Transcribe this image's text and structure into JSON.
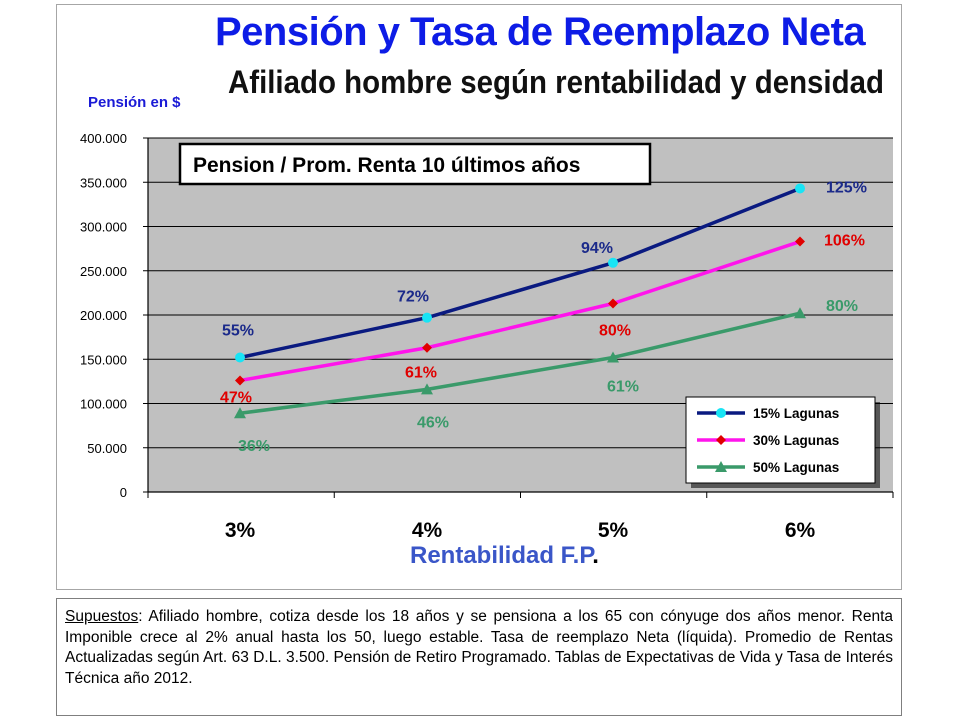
{
  "title": "Pensión y Tasa de Reemplazo Neta",
  "subtitle": "Afiliado hombre según rentabilidad y densidad",
  "chart_data": {
    "type": "line",
    "ylabel": "Pensión en $",
    "xlabel_main": "Rentabilidad F.P",
    "xlabel_dot": ".",
    "categories": [
      "3%",
      "4%",
      "5%",
      "6%"
    ],
    "yticks": [
      "0",
      "50.000",
      "100.000",
      "150.000",
      "200.000",
      "250.000",
      "300.000",
      "350.000",
      "400.000"
    ],
    "ylim": [
      0,
      400000
    ],
    "grid": true,
    "legend_position": "bottom-right",
    "annotation": "Pension / Prom. Renta 10 últimos años",
    "series": [
      {
        "name": "15% Lagunas",
        "color": "#0a1a80",
        "marker": "circle",
        "marker_color": "#19e4f5",
        "label_color": "#1b2a8a",
        "values": [
          152000,
          197000,
          259000,
          343000
        ],
        "labels": [
          "55%",
          "72%",
          "94%",
          "125%"
        ]
      },
      {
        "name": "30% Lagunas",
        "color": "#ff14ec",
        "marker": "diamond",
        "marker_color": "#e00000",
        "label_color": "#e00000",
        "values": [
          126000,
          163000,
          213000,
          283000
        ],
        "labels": [
          "47%",
          "61%",
          "80%",
          "106%"
        ]
      },
      {
        "name": "50% Lagunas",
        "color": "#3a9a6a",
        "marker": "triangle",
        "marker_color": "#3a9a6a",
        "label_color": "#3a9a6a",
        "values": [
          89000,
          116000,
          152000,
          202000
        ],
        "labels": [
          "36%",
          "46%",
          "61%",
          "80%"
        ]
      }
    ]
  },
  "notes": {
    "lead": "Supuestos",
    "text": ": Afiliado hombre, cotiza desde los 18 años y se pensiona a los 65 con cónyuge dos años menor. Renta Imponible crece al 2% anual hasta los 50, luego estable. Tasa de reemplazo Neta (líquida). Promedio de Rentas Actualizadas según Art. 63 D.L. 3.500. Pensión de Retiro Programado. Tablas de Expectativas de Vida y Tasa de Interés Técnica año 2012."
  }
}
